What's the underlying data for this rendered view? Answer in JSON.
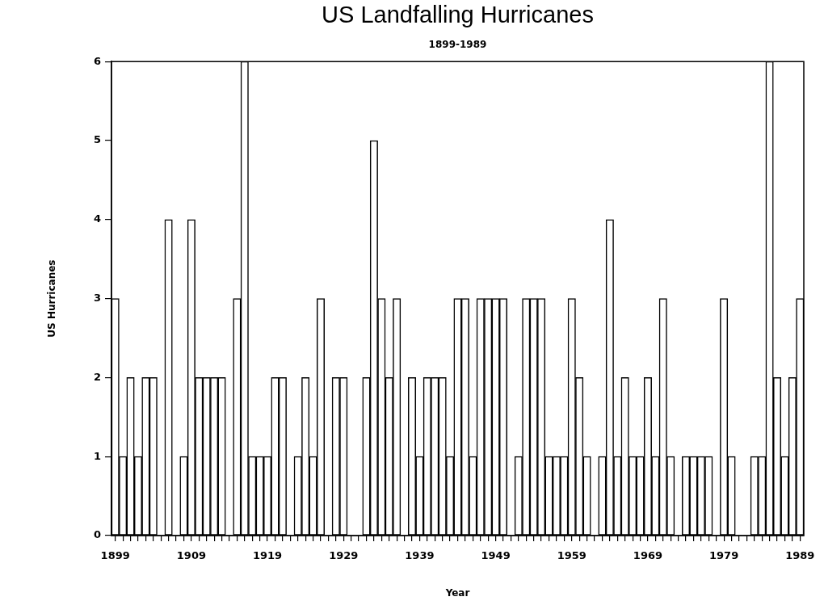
{
  "chart_data": {
    "type": "bar",
    "title": "US Landfalling Hurricanes",
    "subtitle": "1899-1989",
    "xlabel": "Year",
    "ylabel": "US Hurricanes",
    "categories": [
      "1899",
      null,
      null,
      null,
      null,
      null,
      null,
      null,
      null,
      null,
      "1909",
      null,
      null,
      null,
      null,
      null,
      null,
      null,
      null,
      null,
      "1919",
      null,
      null,
      null,
      null,
      null,
      null,
      null,
      null,
      null,
      "1929",
      null,
      null,
      null,
      null,
      null,
      null,
      null,
      null,
      null,
      "1939",
      null,
      null,
      null,
      null,
      null,
      null,
      null,
      null,
      null,
      "1949",
      null,
      null,
      null,
      null,
      null,
      null,
      null,
      null,
      null,
      "1959",
      null,
      null,
      null,
      null,
      null,
      null,
      null,
      null,
      null,
      "1969",
      null,
      null,
      null,
      null,
      null,
      null,
      null,
      null,
      null,
      "1979",
      null,
      null,
      null,
      null,
      null,
      null,
      null,
      null,
      null,
      "1989"
    ],
    "values": [
      3,
      1,
      2,
      1,
      2,
      2,
      0,
      4,
      0,
      1,
      4,
      2,
      2,
      2,
      2,
      0,
      3,
      6,
      1,
      1,
      1,
      2,
      2,
      0,
      1,
      2,
      1,
      3,
      0,
      2,
      2,
      0,
      0,
      2,
      5,
      3,
      2,
      3,
      0,
      2,
      1,
      2,
      2,
      2,
      1,
      3,
      3,
      1,
      3,
      3,
      3,
      3,
      0,
      1,
      3,
      3,
      3,
      1,
      1,
      1,
      3,
      2,
      1,
      0,
      1,
      4,
      1,
      2,
      1,
      1,
      2,
      1,
      3,
      1,
      0,
      1,
      1,
      1,
      1,
      0,
      3,
      1,
      0,
      0,
      1,
      1,
      6,
      2,
      1,
      2,
      3
    ],
    "color": "#ffffff",
    "ylim": [
      0,
      6
    ],
    "yticks": [
      0,
      1,
      2,
      3,
      4,
      5,
      6
    ],
    "grid": false
  }
}
